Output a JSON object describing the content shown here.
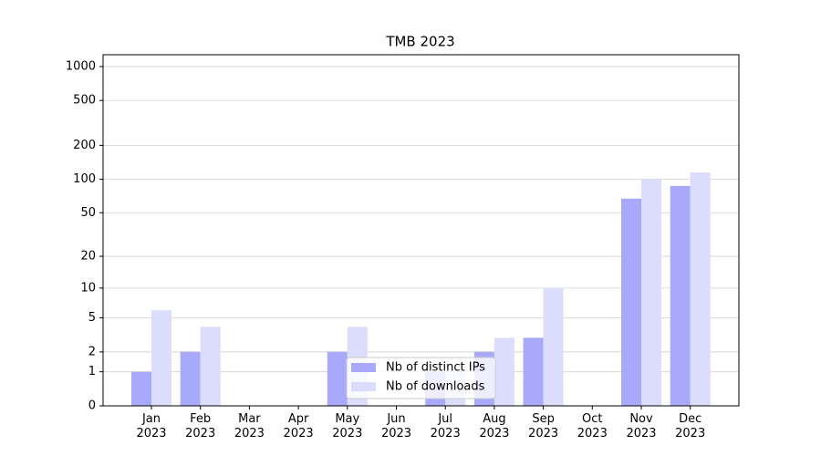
{
  "chart_data": {
    "type": "bar",
    "title": "TMB 2023",
    "categories": [
      "Jan\n2023",
      "Feb\n2023",
      "Mar\n2023",
      "Apr\n2023",
      "May\n2023",
      "Jun\n2023",
      "Jul\n2023",
      "Aug\n2023",
      "Sep\n2023",
      "Oct\n2023",
      "Nov\n2023",
      "Dec\n2023"
    ],
    "series": [
      {
        "name": "Nb of distinct IPs",
        "color": "#a9a9fb",
        "values": [
          1,
          2,
          0,
          0,
          2,
          0,
          1,
          2,
          3,
          0,
          67,
          87
        ]
      },
      {
        "name": "Nb of downloads",
        "color": "#dcdcfd",
        "values": [
          6,
          4,
          0,
          0,
          4,
          0,
          1,
          3,
          10,
          0,
          100,
          115
        ]
      }
    ],
    "yscale": "log1p",
    "ylim": [
      0,
      1272
    ],
    "yticks": [
      0,
      1,
      2,
      5,
      10,
      20,
      50,
      100,
      200,
      500,
      1000
    ],
    "grid": true,
    "legend": "lower center"
  }
}
